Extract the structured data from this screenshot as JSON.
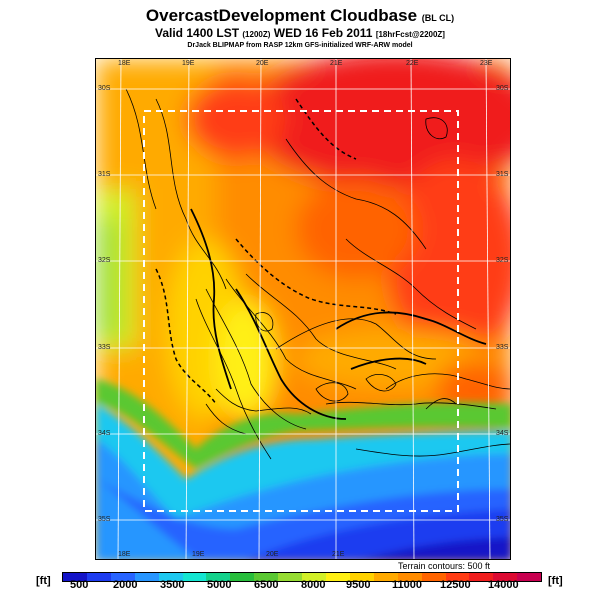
{
  "title": {
    "main": "OvercastDevelopment Cloudbase",
    "tag": "(BL CL)"
  },
  "subtitle": {
    "valid": "Valid 1400 LST",
    "code": "(1200Z)",
    "date": "WED 16 Feb 2011",
    "run": "[18hrFcst@2200Z]"
  },
  "credit": "DrJack BLIPMAP from RASP 12km GFS-initialized WRF-ARW model",
  "lon_top": [
    "18E",
    "19E",
    "20E",
    "21E",
    "22E",
    "23E"
  ],
  "lon_bottom": [
    "18E",
    "19E",
    "20E",
    "21E"
  ],
  "lat_left": [
    "30S",
    "31S",
    "32S",
    "33S",
    "34S",
    "35S"
  ],
  "lat_right": [
    "30S",
    "31S",
    "32S",
    "33S",
    "34S",
    "35S"
  ],
  "terrain_note": "Terrain contours: 500 ft",
  "colorbar": {
    "unit": "[ft]",
    "labels": [
      "500",
      "2000",
      "3500",
      "5000",
      "6500",
      "8000",
      "9500",
      "11000",
      "12500",
      "14000"
    ],
    "colors": [
      "#1414c8",
      "#1e3cf0",
      "#2864ff",
      "#2896ff",
      "#1ec8f0",
      "#14e6d2",
      "#14d28c",
      "#28be3c",
      "#5ac832",
      "#96dc32",
      "#d2f028",
      "#fff014",
      "#ffd200",
      "#ffaa00",
      "#ff8c00",
      "#ff6400",
      "#ff3c14",
      "#f01e1e",
      "#dc0a32",
      "#c80050"
    ]
  }
}
